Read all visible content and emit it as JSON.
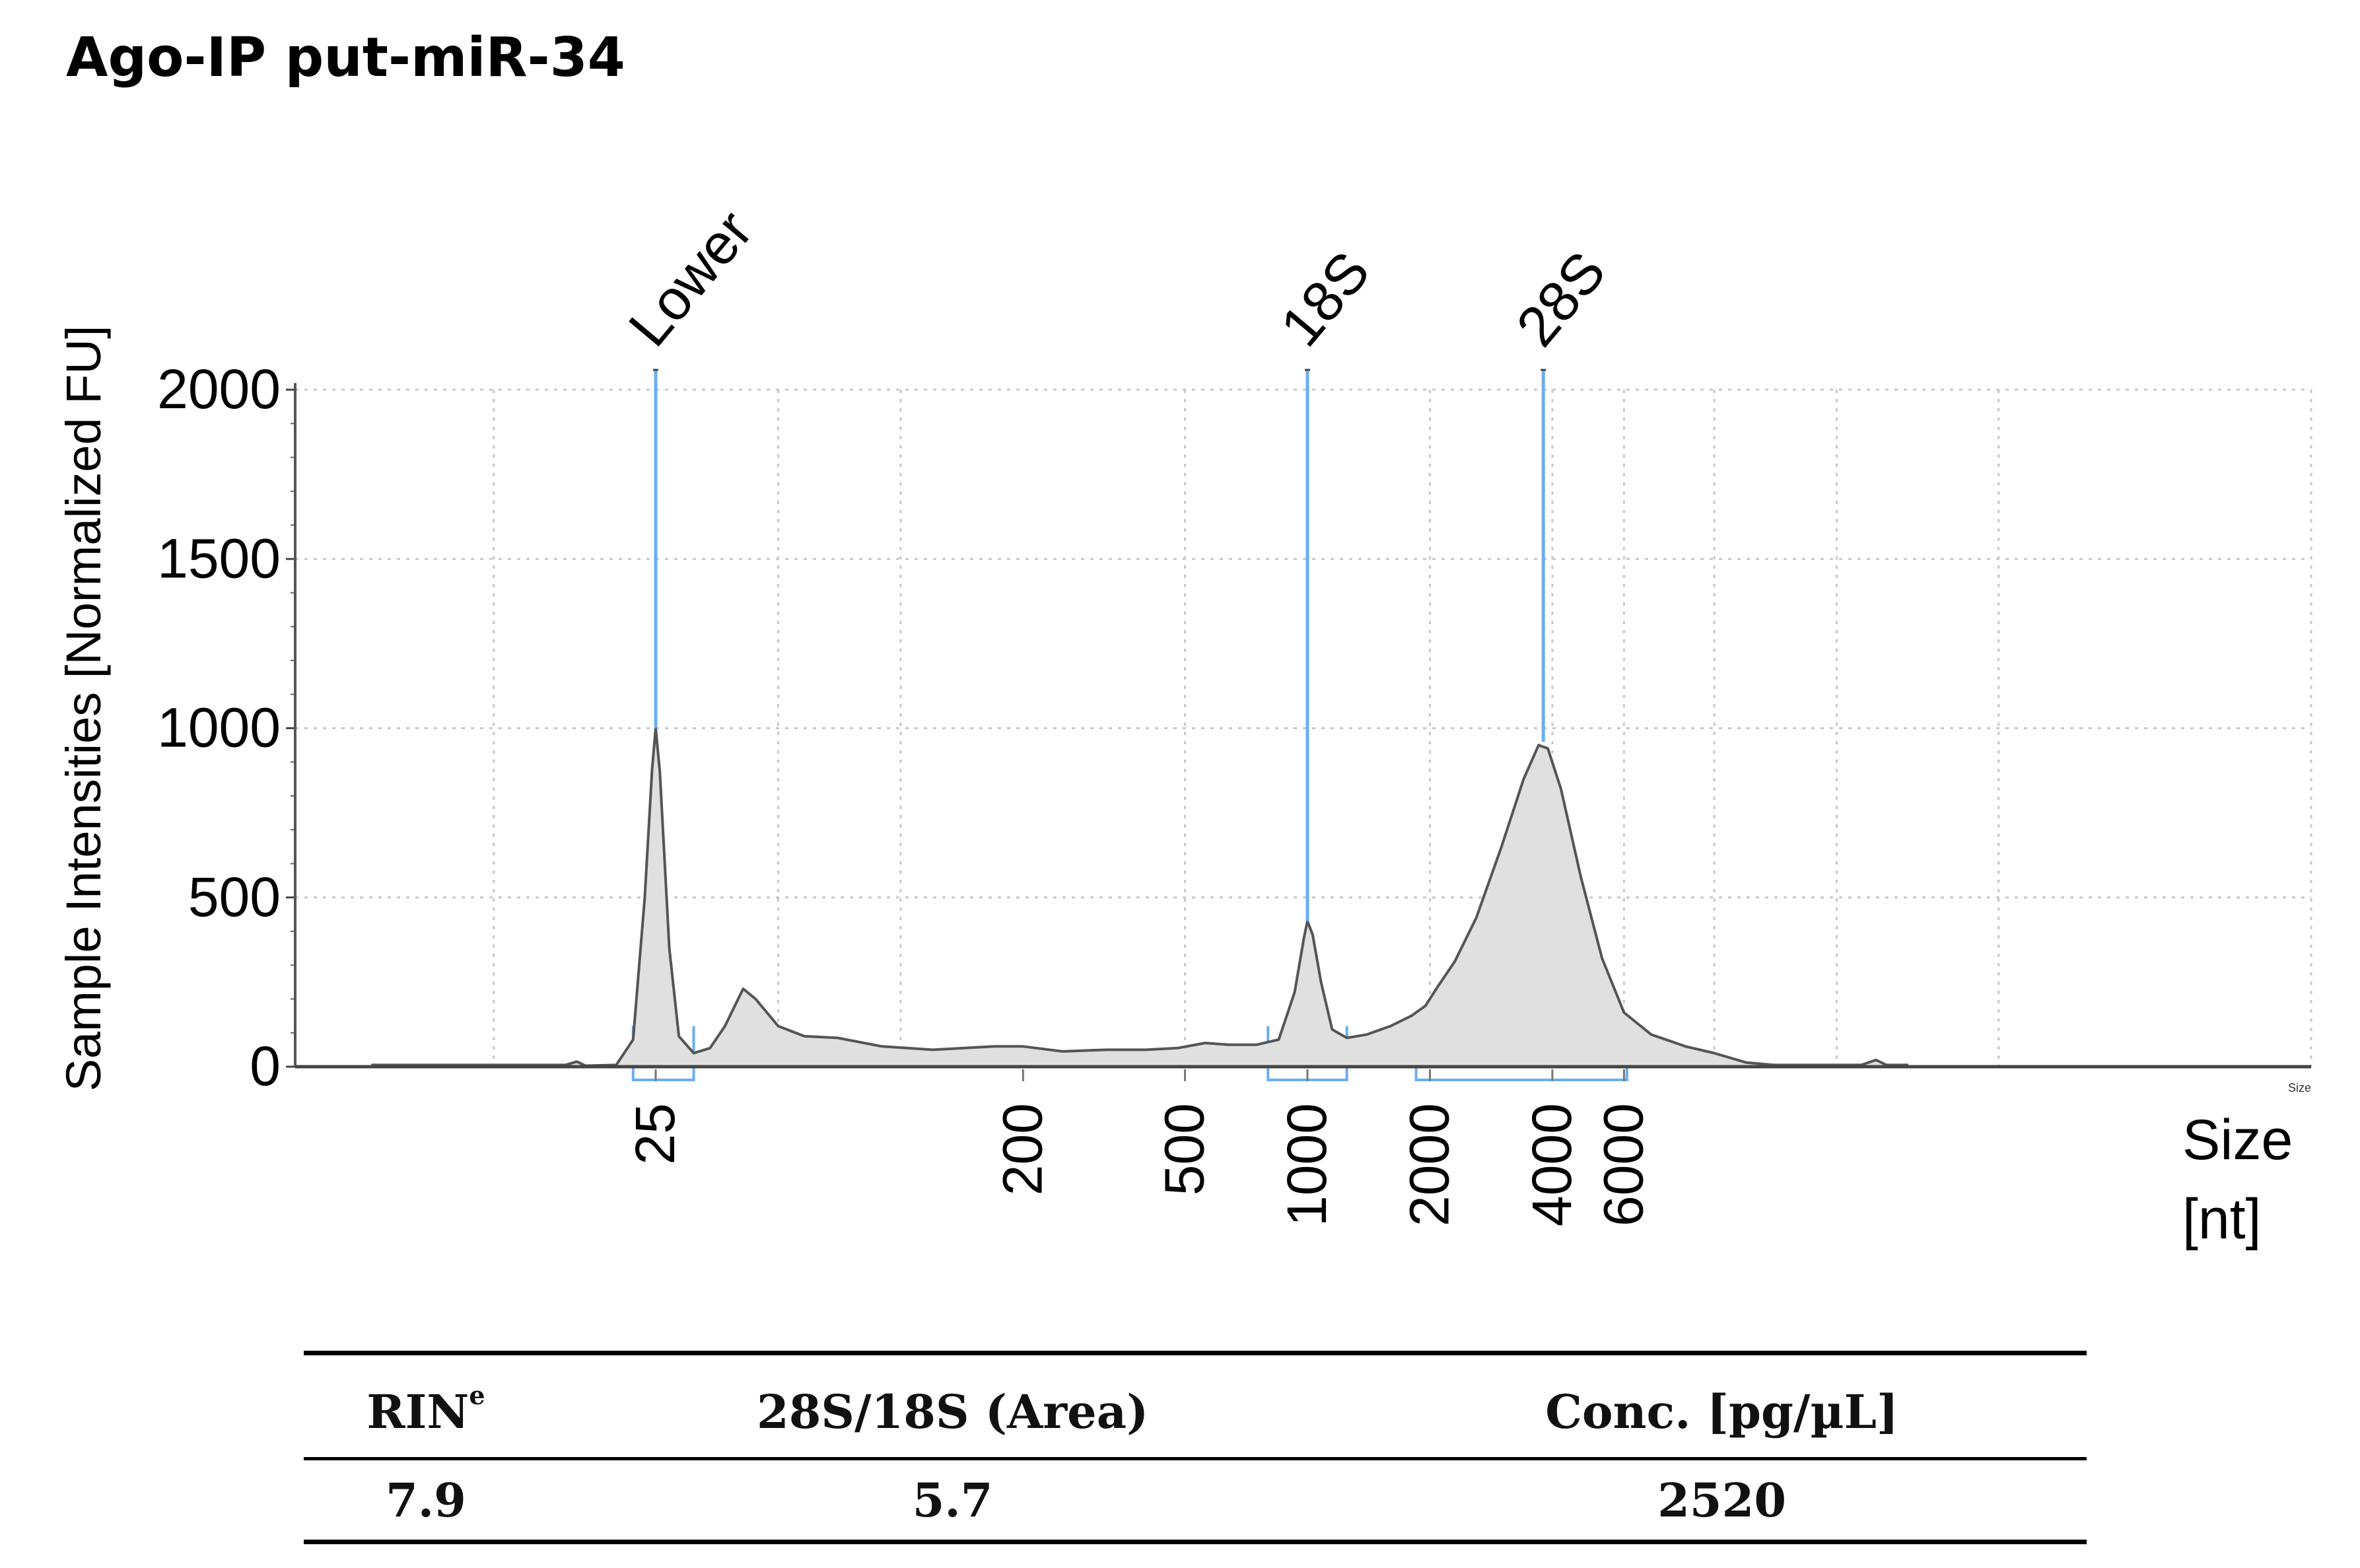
{
  "title": "Ago-IP put-miR-34",
  "chart_data": {
    "type": "area",
    "title": "Ago-IP put-miR-34",
    "ylabel": "Sample Intensities [Normalized FU]",
    "xlabel_line1": "Size",
    "xlabel_line2": "[nt]",
    "x_scale": "log",
    "ylim": [
      0,
      2000
    ],
    "y_ticks": [
      0,
      500,
      1000,
      1500,
      2000
    ],
    "x_ticks": [
      {
        "value": 25,
        "label": "25"
      },
      {
        "value": 200,
        "label": "200"
      },
      {
        "value": 500,
        "label": "500"
      },
      {
        "value": 1000,
        "label": "1000"
      },
      {
        "value": 2000,
        "label": "2000"
      },
      {
        "value": 4000,
        "label": "4000"
      },
      {
        "value": 6000,
        "label": "6000"
      }
    ],
    "corner_label": "Size",
    "peaks": [
      {
        "label": "Lower",
        "size": 25,
        "intensity": 1000
      },
      {
        "label": "18S",
        "size": 1000,
        "intensity": 430
      },
      {
        "label": "28S",
        "size": 3800,
        "intensity": 960
      }
    ],
    "series": [
      {
        "name": "Sample",
        "points": [
          [
            5,
            5
          ],
          [
            10,
            5
          ],
          [
            15,
            5
          ],
          [
            16,
            15
          ],
          [
            16.8,
            3
          ],
          [
            20,
            5
          ],
          [
            22,
            80
          ],
          [
            23.5,
            500
          ],
          [
            24.5,
            880
          ],
          [
            25,
            1000
          ],
          [
            25.6,
            870
          ],
          [
            27,
            350
          ],
          [
            28.5,
            90
          ],
          [
            31,
            40
          ],
          [
            34,
            55
          ],
          [
            37,
            120
          ],
          [
            41,
            230
          ],
          [
            44,
            200
          ],
          [
            50,
            120
          ],
          [
            58,
            90
          ],
          [
            70,
            85
          ],
          [
            90,
            60
          ],
          [
            120,
            50
          ],
          [
            170,
            60
          ],
          [
            200,
            60
          ],
          [
            250,
            45
          ],
          [
            320,
            50
          ],
          [
            400,
            50
          ],
          [
            480,
            55
          ],
          [
            560,
            70
          ],
          [
            640,
            65
          ],
          [
            750,
            65
          ],
          [
            850,
            80
          ],
          [
            930,
            220
          ],
          [
            980,
            380
          ],
          [
            1000,
            430
          ],
          [
            1030,
            390
          ],
          [
            1080,
            250
          ],
          [
            1150,
            110
          ],
          [
            1250,
            85
          ],
          [
            1400,
            95
          ],
          [
            1600,
            120
          ],
          [
            1800,
            150
          ],
          [
            1950,
            180
          ],
          [
            2100,
            240
          ],
          [
            2300,
            310
          ],
          [
            2600,
            440
          ],
          [
            3000,
            650
          ],
          [
            3400,
            850
          ],
          [
            3700,
            950
          ],
          [
            3900,
            940
          ],
          [
            4200,
            820
          ],
          [
            4700,
            560
          ],
          [
            5300,
            320
          ],
          [
            6000,
            160
          ],
          [
            7000,
            95
          ],
          [
            8500,
            60
          ],
          [
            10000,
            40
          ],
          [
            12000,
            12
          ],
          [
            14000,
            5
          ],
          [
            17000,
            5
          ],
          [
            20000,
            5
          ],
          [
            23000,
            5
          ],
          [
            25000,
            20
          ],
          [
            26500,
            5
          ],
          [
            30000,
            5
          ]
        ]
      }
    ],
    "regions": [
      {
        "from": 22,
        "to": 31
      },
      {
        "from": 800,
        "to": 1250
      },
      {
        "from": 1850,
        "to": 6100
      }
    ],
    "colors": {
      "fill": "#e0e0e0",
      "stroke": "#555555",
      "marker": "#6aaef0",
      "grid": "#c8c8c8"
    }
  },
  "table": {
    "headers": {
      "rin": "RIN",
      "rin_sup": "e",
      "ratio": "28S/18S (Area)",
      "conc": "Conc. [pg/µL]"
    },
    "values": {
      "rin": "7.9",
      "ratio": "5.7",
      "conc": "2520"
    }
  }
}
